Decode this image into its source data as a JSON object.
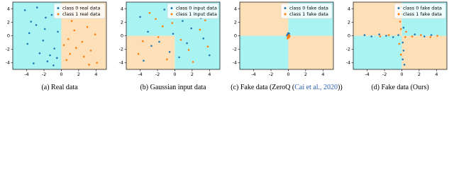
{
  "chart_data": [
    {
      "type": "scatter",
      "caption": "(a)  Real data",
      "xlim": [
        -5.6,
        5.2
      ],
      "ylim": [
        -5,
        5
      ],
      "xticks": [
        -4,
        -2,
        0,
        2,
        4
      ],
      "yticks": [
        -4,
        -2,
        0,
        2,
        4
      ],
      "boundary": {
        "x": 0,
        "y": 0
      },
      "quadrant_colors": [
        "#aaf3f3",
        "#fde0b8",
        "#aaf3f3",
        "#fde0b8"
      ],
      "legend": "upper right",
      "series": [
        {
          "name": "class 0 real data",
          "color": "#1f77b4",
          "x": [
            -4.2,
            -3.5,
            -2.8,
            -1.9,
            -1.1,
            -0.4,
            -3.9,
            -2.5,
            -1.6,
            -0.8,
            -3.2,
            -2.1,
            -1.3,
            -0.5,
            -3.7,
            -2.9,
            -1.8,
            -0.9
          ],
          "y": [
            3.8,
            2.1,
            4.2,
            1.0,
            3.1,
            0.6,
            -1.2,
            -2.6,
            -3.8,
            -1.9,
            -4.1,
            -0.7,
            -2.9,
            -3.3,
            0.4,
            1.6,
            2.7,
            -4.4
          ]
        },
        {
          "name": "class 1 real data",
          "color": "#ff7f0e",
          "x": [
            0.4,
            1.2,
            2.1,
            3.0,
            3.8,
            0.8,
            1.7,
            2.6,
            3.4,
            4.1,
            0.6,
            1.5,
            2.4,
            3.2,
            3.9,
            1.0,
            2.8,
            0.3
          ],
          "y": [
            3.5,
            2.2,
            4.1,
            1.3,
            2.9,
            -0.5,
            -1.8,
            -3.1,
            -2.2,
            -4.0,
            -3.6,
            0.8,
            -0.9,
            -4.3,
            0.2,
            -2.7,
            3.3,
            -1.4
          ]
        }
      ]
    },
    {
      "type": "scatter",
      "caption": "(b)  Gaussian input data",
      "xlim": [
        -5.6,
        5.2
      ],
      "ylim": [
        -5,
        5
      ],
      "xticks": [
        -4,
        -2,
        0,
        2,
        4
      ],
      "yticks": [
        -4,
        -2,
        0,
        2,
        4
      ],
      "boundary": {
        "x": 0,
        "y": 0
      },
      "quadrant_colors": [
        "#aaf3f3",
        "#aaf3f3",
        "#fde0b8",
        "#aaf3f3"
      ],
      "legend": "upper right",
      "series": [
        {
          "name": "class 0 input data",
          "color": "#1f77b4",
          "x": [
            -4.0,
            -2.7,
            -1.2,
            0.5,
            1.9,
            3.3,
            -3.1,
            -0.6,
            2.4,
            4.0,
            -1.8,
            0.9,
            -3.6,
            1.4,
            3.0,
            -0.2
          ],
          "y": [
            2.8,
            -1.5,
            3.9,
            -3.2,
            1.1,
            -0.4,
            0.6,
            -2.4,
            3.3,
            -2.9,
            -0.9,
            2.2,
            -3.7,
            -1.1,
            2.6,
            0.3
          ]
        },
        {
          "name": "class 1 input data",
          "color": "#ff7f0e",
          "x": [
            -3.7,
            -2.2,
            -0.9,
            0.2,
            1.6,
            2.9,
            3.8,
            -2.9,
            -1.4,
            0.7,
            2.1,
            -4.2,
            -0.3,
            1.2,
            3.5,
            -1.9
          ],
          "y": [
            -0.8,
            2.5,
            -3.5,
            3.6,
            -2.1,
            0.9,
            -1.6,
            3.4,
            1.4,
            -0.6,
            -3.9,
            -2.7,
            1.9,
            4.0,
            2.3,
            -0.2
          ]
        }
      ]
    },
    {
      "type": "scatter",
      "caption": "(c)  Fake data (ZeroQ (",
      "citation": "Cai et al., 2020",
      "caption_end": "))",
      "xlim": [
        -5.6,
        5.2
      ],
      "ylim": [
        -5,
        5
      ],
      "xticks": [
        -4,
        -2,
        0,
        2,
        4
      ],
      "yticks": [
        -4,
        -2,
        0,
        2,
        4
      ],
      "boundary": {
        "x": 0,
        "y": 0
      },
      "quadrant_colors": [
        "#fde0b8",
        "#aaf3f3",
        "#aaf3f3",
        "#fde0b8"
      ],
      "legend": "upper right",
      "series": [
        {
          "name": "class 0 fake data",
          "color": "#1f77b4",
          "x": [
            -0.1,
            0.05,
            -0.05,
            0.1,
            0,
            -0.15
          ],
          "y": [
            0.2,
            0.1,
            -0.1,
            0.3,
            0.4,
            0.05
          ]
        },
        {
          "name": "class 1 fake data",
          "color": "#ff7f0e",
          "x": [
            0.1,
            -0.05,
            0.05,
            0,
            0.15,
            -0.1
          ],
          "y": [
            -0.2,
            -0.1,
            0.1,
            -0.3,
            0,
            -0.4
          ]
        }
      ]
    },
    {
      "type": "scatter",
      "caption": "(d)  Fake data (Ours)",
      "xlim": [
        -5.6,
        5.2
      ],
      "ylim": [
        -5,
        5
      ],
      "xticks": [
        -4,
        -2,
        0,
        2,
        4
      ],
      "yticks": [
        -4,
        -2,
        0,
        2,
        4
      ],
      "boundary": {
        "x": 0,
        "y": 0
      },
      "quadrant_colors": [
        "#fde0b8",
        "#aaf3f3",
        "#aaf3f3",
        "#fde0b8"
      ],
      "legend": "upper right",
      "series": [
        {
          "name": "class 0 fake data",
          "color": "#1f77b4",
          "x": [
            -4.3,
            -3.5,
            -2.6,
            -1.8,
            -1.0,
            -0.4,
            0.1,
            0.2,
            0.1,
            0.3,
            1.5,
            2.6,
            3.4,
            0.2
          ],
          "y": [
            0.1,
            -0.1,
            0.2,
            0,
            -0.2,
            0.1,
            -1.0,
            -2.2,
            -3.5,
            -4.3,
            0.2,
            -0.1,
            0.1,
            1.2
          ]
        },
        {
          "name": "class 1 fake data",
          "color": "#ff7f0e",
          "x": [
            -0.1,
            -0.2,
            0,
            -0.1,
            0.4,
            1.2,
            2.2,
            3.3,
            4.1,
            -0.3,
            -0.1,
            -1.5,
            -2.5,
            0.5
          ],
          "y": [
            1.0,
            2.1,
            3.2,
            4.3,
            -0.2,
            -0.1,
            0.1,
            -0.2,
            0,
            -1.2,
            -2.8,
            0.1,
            -0.1,
            0.6
          ]
        }
      ]
    }
  ]
}
